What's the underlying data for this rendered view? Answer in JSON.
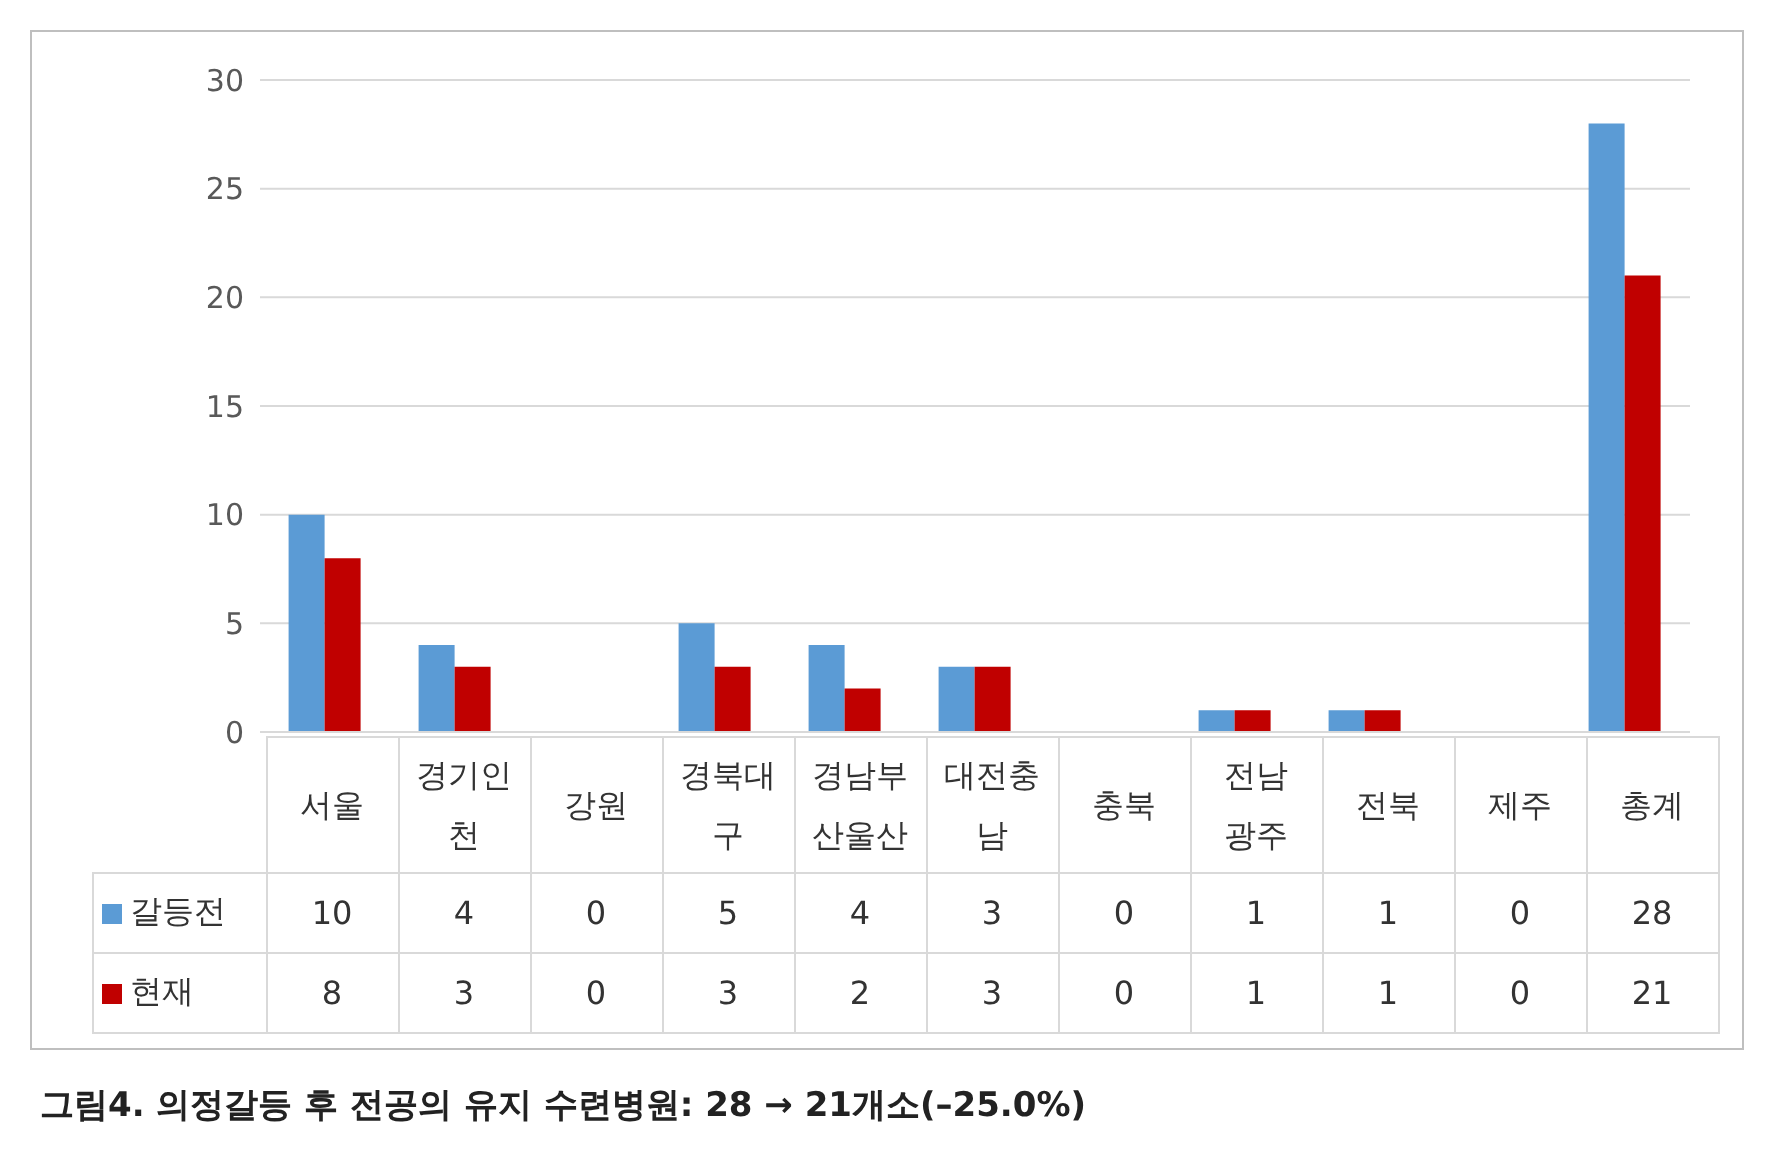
{
  "chart_data": {
    "type": "bar",
    "categories": [
      "서울",
      "경기인\n천",
      "강원",
      "경북대\n구",
      "경남부\n산울산",
      "대전충\n남",
      "충북",
      "전남\n광주",
      "전북",
      "제주",
      "총계"
    ],
    "series": [
      {
        "name": "갈등전",
        "color": "#5b9bd5",
        "values": [
          10,
          4,
          0,
          5,
          4,
          3,
          0,
          1,
          1,
          0,
          28
        ]
      },
      {
        "name": "현재",
        "color": "#c00000",
        "values": [
          8,
          3,
          0,
          3,
          2,
          3,
          0,
          1,
          1,
          0,
          21
        ]
      }
    ],
    "ylim": [
      0,
      30
    ],
    "yticks": [
      0,
      5,
      10,
      15,
      20,
      25,
      30
    ],
    "grid": "y",
    "legend": "bottom",
    "data_labels": true,
    "annotations": [
      "그림4. 의정갈등 후 전공의 유지 수련병원: 28 → 21개소(–25.0%)"
    ]
  }
}
